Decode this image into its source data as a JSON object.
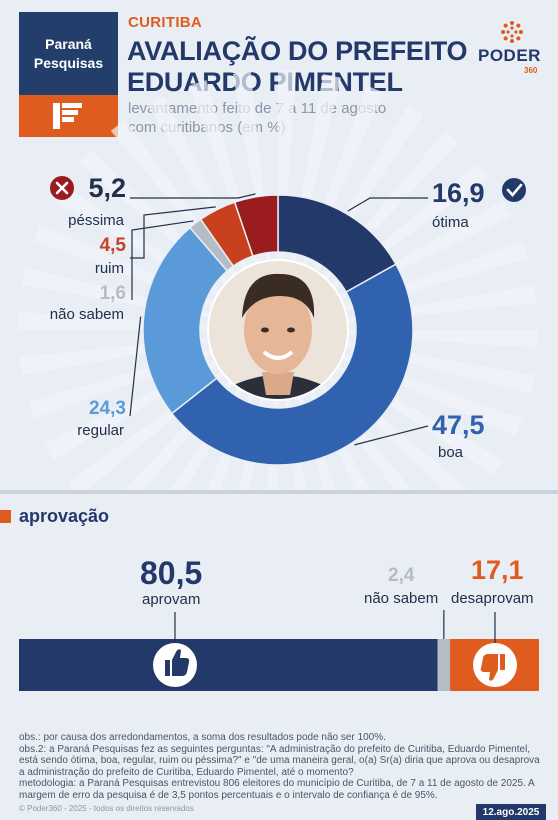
{
  "header": {
    "brand_line1": "Paraná",
    "brand_line2": "Pesquisas",
    "kicker": "CURITIBA",
    "title_line1": "AVALIAÇÃO DO PREFEITO",
    "title_line2": "EDUARDO PIMENTEL",
    "subtitle_line1": "levantamento feito de 7 a 11 de agosto",
    "subtitle_line2": "com curitibanos (em %)",
    "logo_name": "PODER",
    "logo_suffix": "360"
  },
  "colors": {
    "otima": "#22396a",
    "boa": "#3062b0",
    "regular": "#5b9ad8",
    "nao_sabem": "#b6bcc6",
    "ruim": "#c8401e",
    "pessima": "#9b1c1f",
    "aprovam": "#22396a",
    "desaprovam": "#e05c1e",
    "accent": "#e05c1e"
  },
  "chart_data": [
    {
      "type": "pie",
      "categories": [
        "ótima",
        "boa",
        "regular",
        "não sabem",
        "ruim",
        "péssima"
      ],
      "values": [
        16.9,
        47.5,
        24.3,
        1.6,
        4.5,
        5.2
      ],
      "labels": [
        "16,9",
        "47,5",
        "24,3",
        "1,6",
        "4,5",
        "5,2"
      ]
    },
    {
      "type": "bar",
      "title": "aprovação",
      "categories": [
        "aprovam",
        "não sabem",
        "desaprovam"
      ],
      "values": [
        80.5,
        2.4,
        17.1
      ],
      "labels": [
        "80,5",
        "2,4",
        "17,1"
      ]
    }
  ],
  "notes": {
    "obs1": "obs.: por causa dos arredondamentos, a soma dos resultados pode não ser 100%.",
    "obs2": "obs.2: a Paraná Pesquisas fez as seguintes perguntas: \"A administração do prefeito de Curitiba, Eduardo Pimentel, está sendo ótima, boa, regular, ruim ou péssima?\" e \"de uma maneira geral, o(a) Sr(a) diria que aprova ou desaprova a administração do prefeito de Curitiba, Eduardo Pimentel, até o momento?",
    "method": "metodologia: a Paraná Pesquisas entrevistou 806 eleitores do município de Curitiba, de 7 a 11 de agosto de 2025. A margem de erro da pesquisa é de 3,5 pontos percentuais e o intervalo de confiança é de 95%.",
    "copyright": "© Poder360 - 2025 - todos os direitos reservados",
    "date": "12.ago.2025"
  }
}
